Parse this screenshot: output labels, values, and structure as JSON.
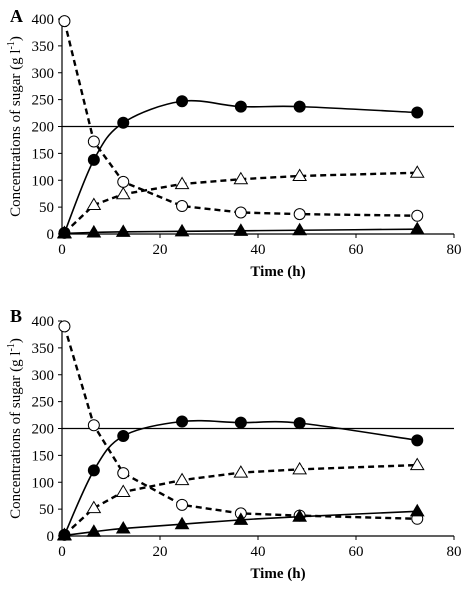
{
  "chart_data": [
    {
      "panel_label": "A",
      "type": "line",
      "xlabel": "Time (h)",
      "ylabel": "Concentrations of sugar (g l",
      "ylabel_sup": "-1",
      "ylabel_close": ")",
      "xlim": [
        0,
        80
      ],
      "ylim": [
        0,
        400
      ],
      "xticks": [
        0,
        20,
        40,
        60,
        80
      ],
      "yticks": [
        0,
        50,
        100,
        150,
        200,
        250,
        300,
        350,
        400
      ],
      "grid": false,
      "reference_line": 200,
      "series": [
        {
          "marker": "filled-circle",
          "style": "solid",
          "x": [
            0.5,
            6.5,
            12.5,
            24.5,
            36.5,
            48.5,
            72.5
          ],
          "y": [
            2,
            138,
            207,
            247,
            237,
            237,
            226
          ]
        },
        {
          "marker": "open-circle",
          "style": "dashed",
          "x": [
            0.5,
            6.5,
            12.5,
            24.5,
            36.5,
            48.5,
            72.5
          ],
          "y": [
            396,
            172,
            97,
            52,
            40,
            37,
            34
          ]
        },
        {
          "marker": "open-triangle",
          "style": "dashed",
          "x": [
            0.5,
            6.5,
            12.5,
            24.5,
            36.5,
            48.5,
            72.5
          ],
          "y": [
            2,
            54,
            74,
            93,
            102,
            108,
            114
          ]
        },
        {
          "marker": "filled-triangle",
          "style": "solid",
          "x": [
            0.5,
            6.5,
            12.5,
            24.5,
            36.5,
            48.5,
            72.5
          ],
          "y": [
            1,
            3,
            4,
            5,
            6,
            7,
            9
          ]
        }
      ]
    },
    {
      "panel_label": "B",
      "type": "line",
      "xlabel": "Time (h)",
      "ylabel": "Concentrations of sugar (g l",
      "ylabel_sup": "-1",
      "ylabel_close": ")",
      "xlim": [
        0,
        80
      ],
      "ylim": [
        0,
        400
      ],
      "xticks": [
        0,
        20,
        40,
        60,
        80
      ],
      "yticks": [
        0,
        50,
        100,
        150,
        200,
        250,
        300,
        350,
        400
      ],
      "grid": false,
      "reference_line": 200,
      "series": [
        {
          "marker": "filled-circle",
          "style": "solid",
          "x": [
            0.5,
            6.5,
            12.5,
            24.5,
            36.5,
            48.5,
            72.5
          ],
          "y": [
            2,
            122,
            186,
            213,
            211,
            210,
            178
          ]
        },
        {
          "marker": "open-circle",
          "style": "dashed",
          "x": [
            0.5,
            6.5,
            12.5,
            24.5,
            36.5,
            48.5,
            72.5
          ],
          "y": [
            390,
            206,
            117,
            58,
            42,
            38,
            32
          ]
        },
        {
          "marker": "open-triangle",
          "style": "dashed",
          "x": [
            0.5,
            6.5,
            12.5,
            24.5,
            36.5,
            48.5,
            72.5
          ],
          "y": [
            2,
            52,
            82,
            104,
            118,
            124,
            132
          ]
        },
        {
          "marker": "filled-triangle",
          "style": "solid",
          "x": [
            0.5,
            6.5,
            12.5,
            24.5,
            36.5,
            48.5,
            72.5
          ],
          "y": [
            1,
            8,
            14,
            22,
            30,
            36,
            46
          ]
        }
      ]
    }
  ]
}
